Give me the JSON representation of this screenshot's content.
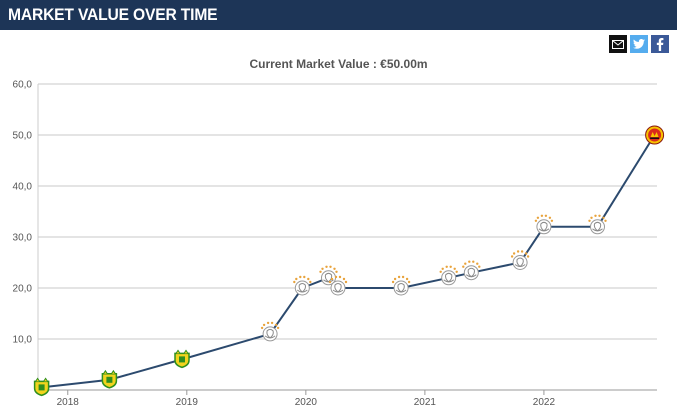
{
  "header": {
    "title": "MARKET VALUE OVER TIME"
  },
  "share": {
    "icons": [
      "email-icon",
      "twitter-icon",
      "facebook-icon"
    ]
  },
  "colors": {
    "header_bg": "#1d3557",
    "line": "#2c4a6e",
    "grid": "#c8c8c8",
    "club_mechelen": "#2f8f1e",
    "club_ajax": "#c8102e",
    "club_manutd": "#da291c"
  },
  "chart_data": {
    "type": "line",
    "title": "Current Market Value : €50.00m",
    "xlabel": "",
    "ylabel": "",
    "ylim": [
      0,
      60
    ],
    "yticks": [
      "",
      "10,0",
      "20,0",
      "30,0",
      "40,0",
      "50,0",
      "60,0"
    ],
    "xticks": [
      "2018",
      "2019",
      "2020",
      "2021",
      "2022"
    ],
    "xlim": [
      2017.75,
      2022.95
    ],
    "grid": true,
    "series": [
      {
        "points": [
          {
            "x": 2017.78,
            "y": 0.5,
            "club": "mechelen"
          },
          {
            "x": 2018.35,
            "y": 2,
            "club": "mechelen"
          },
          {
            "x": 2018.96,
            "y": 6,
            "club": "mechelen"
          },
          {
            "x": 2019.7,
            "y": 11,
            "club": "ajax"
          },
          {
            "x": 2019.97,
            "y": 20,
            "club": "ajax"
          },
          {
            "x": 2020.19,
            "y": 22,
            "club": "ajax"
          },
          {
            "x": 2020.27,
            "y": 20,
            "club": "ajax"
          },
          {
            "x": 2020.8,
            "y": 20,
            "club": "ajax"
          },
          {
            "x": 2021.2,
            "y": 22,
            "club": "ajax"
          },
          {
            "x": 2021.39,
            "y": 23,
            "club": "ajax"
          },
          {
            "x": 2021.8,
            "y": 25,
            "club": "ajax"
          },
          {
            "x": 2022.0,
            "y": 32,
            "club": "ajax"
          },
          {
            "x": 2022.45,
            "y": 32,
            "club": "ajax"
          },
          {
            "x": 2022.93,
            "y": 50,
            "club": "manutd"
          }
        ]
      }
    ]
  }
}
